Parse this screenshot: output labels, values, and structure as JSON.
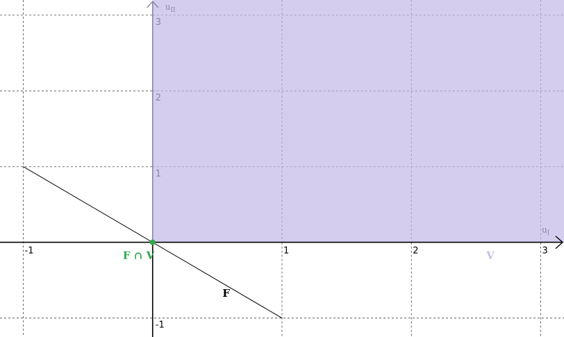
{
  "chart_data": {
    "type": "line",
    "xlim": [
      -1.18,
      3.18
    ],
    "ylim": [
      -1.25,
      3.2
    ],
    "grid": true,
    "x_ticks": [
      -1,
      1,
      2,
      3
    ],
    "y_ticks": [
      -1,
      1,
      2,
      3
    ],
    "x_tick_labels": [
      "-1",
      "1",
      "2",
      "3"
    ],
    "y_tick_labels": [
      "-1",
      "1",
      "2",
      "3"
    ],
    "xlabel": "u",
    "xlabel_sub": "I",
    "ylabel": "u",
    "ylabel_sub": "II",
    "line_F": {
      "label": "F",
      "points": [
        [
          -1,
          1
        ],
        [
          1,
          -1
        ]
      ],
      "label_at": [
        0.54,
        -0.72
      ],
      "color": "#000000"
    },
    "region_V": {
      "label": "V",
      "x_from": 0,
      "y_from": 0,
      "label_at": [
        2.58,
        -0.22
      ],
      "fill": "#d4cdee",
      "label_color": "#c4bfe0"
    },
    "intersection": {
      "label": "F ∩ V",
      "point": [
        0,
        0
      ],
      "label_at": [
        -0.23,
        -0.22
      ],
      "color": "#2fa84f"
    },
    "colors": {
      "grid": "#444444",
      "grid_in_region": "#9a94b8",
      "axis": "#000000",
      "axis_in_region": "#8a85a8"
    }
  }
}
